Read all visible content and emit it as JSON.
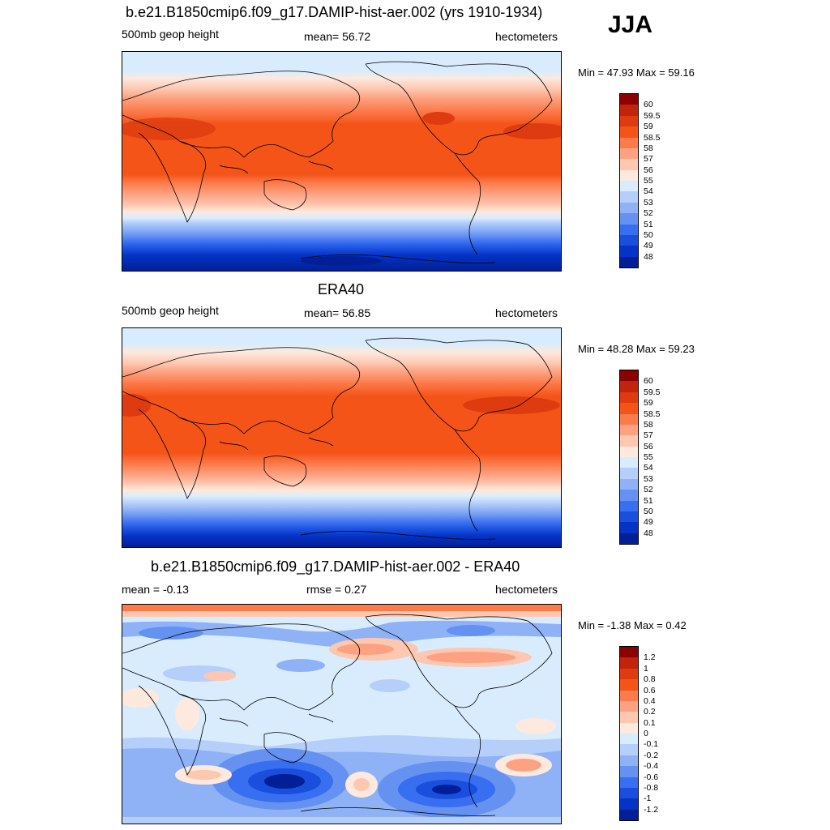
{
  "season": "JJA",
  "panels": [
    {
      "title": "b.e21.B1850cmip6.f09_g17.DAMIP-hist-aer.002 (yrs 1910-1934)",
      "left_label": "500mb geop height",
      "center_label": "mean=  56.72",
      "units": "hectometers",
      "minmax": "Min =  47.93 Max =  59.16",
      "colorbar_labels": [
        "60",
        "59.5",
        "59",
        "58.5",
        "58",
        "57",
        "56",
        "55",
        "54",
        "53",
        "52",
        "51",
        "50",
        "49",
        "48"
      ],
      "colorbar_colors": [
        "#8b0000",
        "#c1240a",
        "#de3b10",
        "#f45418",
        "#fc7b4b",
        "#fca282",
        "#fdc7b0",
        "#fde9de",
        "#d9ecfd",
        "#b5cffa",
        "#8fb2f7",
        "#6592f1",
        "#386ef0",
        "#1a4fde",
        "#0433c5",
        "#021f97"
      ]
    },
    {
      "title": "ERA40",
      "left_label": "500mb geop height",
      "center_label": "mean=  56.85",
      "units": "hectometers",
      "minmax": "Min =  48.28 Max =  59.23",
      "colorbar_labels": [
        "60",
        "59.5",
        "59",
        "58.5",
        "58",
        "57",
        "56",
        "55",
        "54",
        "53",
        "52",
        "51",
        "50",
        "49",
        "48"
      ],
      "colorbar_colors": [
        "#8b0000",
        "#c1240a",
        "#de3b10",
        "#f45418",
        "#fc7b4b",
        "#fca282",
        "#fdc7b0",
        "#fde9de",
        "#d9ecfd",
        "#b5cffa",
        "#8fb2f7",
        "#6592f1",
        "#386ef0",
        "#1a4fde",
        "#0433c5",
        "#021f97"
      ]
    },
    {
      "title": "b.e21.B1850cmip6.f09_g17.DAMIP-hist-aer.002 - ERA40",
      "left_label": "mean =  -0.13",
      "center_label": "rmse =   0.27",
      "units": "hectometers",
      "minmax": "Min =  -1.38 Max =   0.42",
      "colorbar_labels": [
        "1.2",
        "1",
        "0.8",
        "0.6",
        "0.4",
        "0.2",
        "0.1",
        "0",
        "-0.1",
        "-0.2",
        "-0.4",
        "-0.6",
        "-0.8",
        "-1",
        "-1.2"
      ],
      "colorbar_colors": [
        "#8b0000",
        "#c1240a",
        "#de3b10",
        "#f45418",
        "#fc7b4b",
        "#fca282",
        "#fdc7b0",
        "#fde9de",
        "#d9ecfd",
        "#b5cffa",
        "#8fb2f7",
        "#6592f1",
        "#386ef0",
        "#1a4fde",
        "#0433c5",
        "#021f97"
      ]
    }
  ]
}
